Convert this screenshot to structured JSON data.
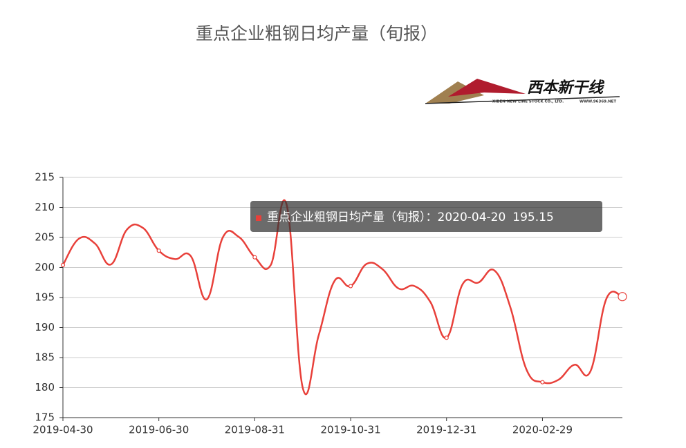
{
  "chart_data": {
    "type": "line",
    "title": "重点企业粗钢日均产量（旬报）",
    "logo": {
      "name": "西本新干线",
      "company": "XIBEN NEW LINE STOCK CO., LTD.",
      "site": "WWW.96369.NET"
    },
    "categories": [
      "2019-04-30",
      null,
      null,
      null,
      null,
      null,
      "2019-06-30",
      null,
      null,
      null,
      null,
      null,
      "2019-08-31",
      null,
      null,
      null,
      null,
      null,
      "2019-10-31",
      null,
      null,
      null,
      null,
      null,
      "2019-12-31",
      null,
      null,
      null,
      null,
      null,
      "2020-02-29",
      null,
      null,
      null,
      null,
      null
    ],
    "series": [
      {
        "name": "重点企业粗钢日均产量（旬报）",
        "color": "#e8403a",
        "values": [
          200.4,
          204.8,
          204.0,
          200.5,
          206.3,
          206.6,
          202.8,
          201.4,
          201.9,
          194.7,
          205.0,
          205.1,
          201.7,
          200.4,
          210.4,
          180.0,
          188.7,
          197.8,
          196.9,
          200.6,
          199.7,
          196.5,
          196.9,
          194.2,
          188.3,
          197.2,
          197.5,
          199.5,
          193.3,
          183.0,
          180.9,
          181.3,
          183.8,
          182.7,
          194.8,
          195.15
        ]
      }
    ],
    "ylim": [
      175,
      215
    ],
    "yticks": [
      175,
      180,
      185,
      190,
      195,
      200,
      205,
      210,
      215
    ],
    "grid": true,
    "tooltip": {
      "label": "重点企业粗钢日均产量（旬报）：",
      "date": "2020-04-20"
    }
  }
}
